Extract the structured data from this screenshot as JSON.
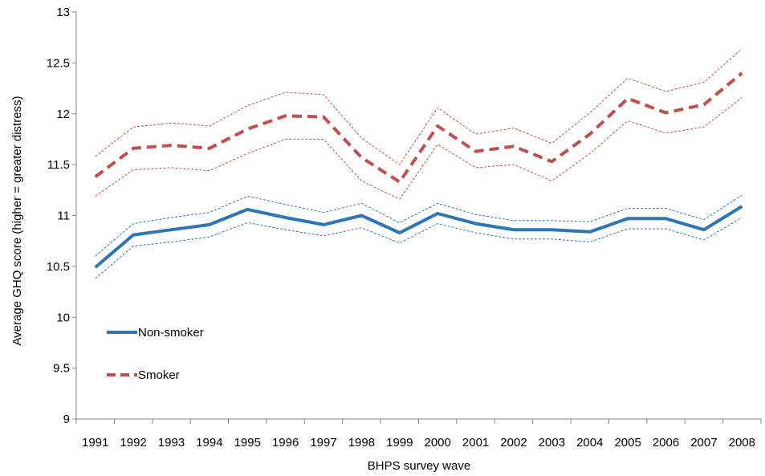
{
  "chart_data": {
    "type": "line",
    "title": "",
    "xlabel": "BHPS survey wave",
    "ylabel": "Average GHQ score (higher = greater distress)",
    "ylim": [
      9,
      13
    ],
    "yticks": [
      9,
      9.5,
      10,
      10.5,
      11,
      11.5,
      12,
      12.5,
      13
    ],
    "ytick_labels": [
      "9",
      "9.5",
      "10",
      "10.5",
      "11",
      "11.5",
      "12",
      "12.5",
      "13"
    ],
    "categories": [
      "1991",
      "1992",
      "1993",
      "1994",
      "1995",
      "1996",
      "1997",
      "1998",
      "1999",
      "2000",
      "2001",
      "2002",
      "2003",
      "2004",
      "2005",
      "2006",
      "2007",
      "2008"
    ],
    "grid": false,
    "legend_position": "bottom-left",
    "series": [
      {
        "name": "Non-smoker",
        "style": "solid",
        "color": "#2E75B6",
        "values": [
          10.49,
          10.81,
          10.86,
          10.91,
          11.06,
          10.98,
          10.91,
          11.0,
          10.83,
          11.02,
          10.92,
          10.86,
          10.86,
          10.84,
          10.97,
          10.97,
          10.86,
          11.09
        ],
        "ci_lower": [
          10.38,
          10.7,
          10.74,
          10.79,
          10.93,
          10.86,
          10.8,
          10.88,
          10.73,
          10.92,
          10.83,
          10.77,
          10.77,
          10.74,
          10.87,
          10.87,
          10.76,
          10.98
        ],
        "ci_upper": [
          10.6,
          10.92,
          10.98,
          11.03,
          11.19,
          11.11,
          11.03,
          11.12,
          10.93,
          11.12,
          11.01,
          10.95,
          10.95,
          10.94,
          11.07,
          11.07,
          10.96,
          11.2
        ]
      },
      {
        "name": "Smoker",
        "style": "dashed",
        "color": "#C0504D",
        "values": [
          11.38,
          11.66,
          11.69,
          11.66,
          11.85,
          11.98,
          11.97,
          11.57,
          11.33,
          11.88,
          11.63,
          11.68,
          11.53,
          11.8,
          12.15,
          12.01,
          12.09,
          12.4
        ],
        "ci_lower": [
          11.19,
          11.45,
          11.47,
          11.44,
          11.61,
          11.75,
          11.75,
          11.34,
          11.16,
          11.7,
          11.47,
          11.5,
          11.34,
          11.61,
          11.93,
          11.81,
          11.87,
          12.16
        ],
        "ci_upper": [
          11.58,
          11.87,
          11.91,
          11.88,
          12.08,
          12.21,
          12.19,
          11.76,
          11.5,
          12.06,
          11.8,
          11.86,
          11.71,
          12.01,
          12.35,
          12.22,
          12.31,
          12.64
        ]
      }
    ]
  }
}
